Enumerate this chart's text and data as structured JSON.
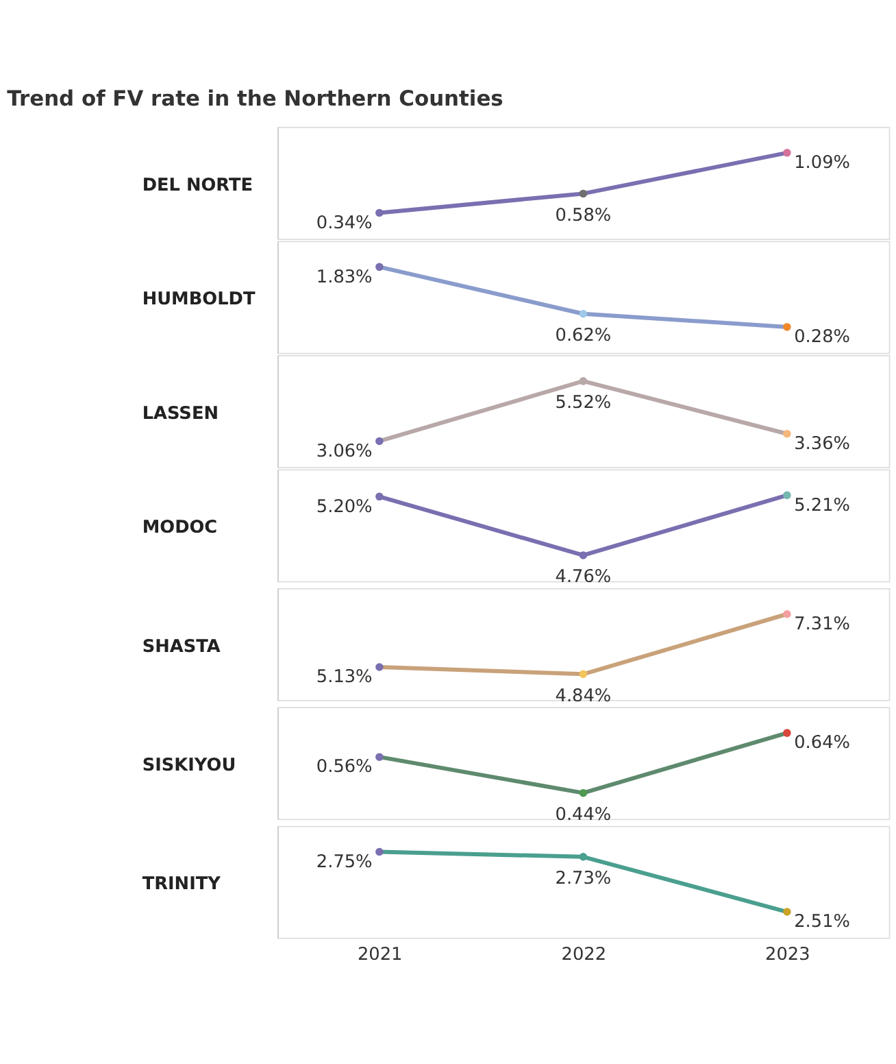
{
  "chart_data": [
    {
      "type": "line",
      "title": "Trend of FV rate in the Northern Counties",
      "ylabel": "DEL NORTE",
      "categories": [
        "2021",
        "2022",
        "2023"
      ],
      "series": [
        {
          "color": "#7a6fb0",
          "colors": [
            "#7a6fb0",
            "#6f6f6f",
            "#d4729c"
          ],
          "values": [
            0.34,
            0.58,
            1.09
          ],
          "value_labels": [
            "0.34%",
            "0.58%",
            "1.09%"
          ]
        }
      ],
      "marker": "circle",
      "tick_labels": false
    },
    {
      "type": "line",
      "ylabel": "HUMBOLDT",
      "categories": [
        "2021",
        "2022",
        "2023"
      ],
      "series": [
        {
          "color": "#8a9ccc",
          "colors": [
            "#7a6fb0",
            "#9ec9e8",
            "#f0892b"
          ],
          "values": [
            1.83,
            0.62,
            0.28
          ],
          "value_labels": [
            "1.83%",
            "0.62%",
            "0.28%"
          ]
        }
      ],
      "marker": "circle",
      "tick_labels": false
    },
    {
      "type": "line",
      "ylabel": "LASSEN",
      "categories": [
        "2021",
        "2022",
        "2023"
      ],
      "series": [
        {
          "color": "#b8a8a8",
          "colors": [
            "#7a6fb0",
            "#b8a8a8",
            "#f5b77a"
          ],
          "values": [
            3.06,
            5.52,
            3.36
          ],
          "value_labels": [
            "3.06%",
            "5.52%",
            "3.36%"
          ]
        }
      ],
      "marker": "circle",
      "tick_labels": false
    },
    {
      "type": "line",
      "ylabel": "MODOC",
      "categories": [
        "2021",
        "2022",
        "2023"
      ],
      "series": [
        {
          "color": "#7a6fb0",
          "colors": [
            "#7a6fb0",
            "#7a6fb0",
            "#74b8b0"
          ],
          "values": [
            5.2,
            4.76,
            5.21
          ],
          "value_labels": [
            "5.20%",
            "4.76%",
            "5.21%"
          ]
        }
      ],
      "marker": "circle",
      "tick_labels": false
    },
    {
      "type": "line",
      "ylabel": "SHASTA",
      "categories": [
        "2021",
        "2022",
        "2023"
      ],
      "series": [
        {
          "color": "#c9a27a",
          "colors": [
            "#7a6fb0",
            "#f2c45a",
            "#f5a0a0"
          ],
          "values": [
            5.13,
            4.84,
            7.31
          ],
          "value_labels": [
            "5.13%",
            "4.84%",
            "7.31%"
          ]
        }
      ],
      "marker": "circle",
      "tick_labels": false
    },
    {
      "type": "line",
      "ylabel": "SISKIYOU",
      "categories": [
        "2021",
        "2022",
        "2023"
      ],
      "series": [
        {
          "color": "#5e8a6e",
          "colors": [
            "#7a6fb0",
            "#4e9a4e",
            "#d9473c"
          ],
          "values": [
            0.56,
            0.44,
            0.64
          ],
          "value_labels": [
            "0.56%",
            "0.44%",
            "0.64%"
          ]
        }
      ],
      "marker": "circle",
      "tick_labels": false
    },
    {
      "type": "line",
      "ylabel": "TRINITY",
      "categories": [
        "2021",
        "2022",
        "2023"
      ],
      "series": [
        {
          "color": "#4a9f8f",
          "colors": [
            "#7a6fb0",
            "#4a9f8f",
            "#c9a227"
          ],
          "values": [
            2.75,
            2.73,
            2.51
          ],
          "value_labels": [
            "2.75%",
            "2.73%",
            "2.51%"
          ]
        }
      ],
      "marker": "circle",
      "tick_labels": "x"
    }
  ]
}
